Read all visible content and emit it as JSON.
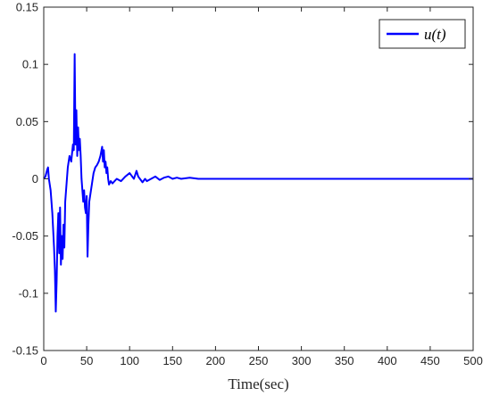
{
  "chart_data": {
    "type": "line",
    "title": "",
    "xlabel": "Time(sec)",
    "ylabel": "",
    "xlim": [
      0,
      500
    ],
    "ylim": [
      -0.15,
      0.15
    ],
    "x_ticks": [
      "0",
      "50",
      "100",
      "150",
      "200",
      "250",
      "300",
      "350",
      "400",
      "450",
      "500"
    ],
    "y_ticks": [
      "-0.15",
      "-0.1",
      "-0.05",
      "0",
      "0.05",
      "0.1",
      "0.15"
    ],
    "grid": false,
    "legend_position": "top-right",
    "series": [
      {
        "name": "u(t)",
        "color": "#0000ff",
        "x": [
          0,
          2,
          4,
          5,
          6,
          8,
          10,
          12,
          13,
          14,
          15,
          16,
          17,
          18,
          19,
          20,
          21,
          22,
          23,
          24,
          25,
          26,
          28,
          30,
          32,
          34,
          35,
          36,
          37,
          38,
          39,
          40,
          41,
          42,
          43,
          44,
          45,
          46,
          47,
          48,
          49,
          50,
          51,
          52,
          53,
          54,
          55,
          56,
          57,
          58,
          60,
          62,
          64,
          66,
          68,
          69,
          70,
          71,
          72,
          73,
          74,
          75,
          76,
          78,
          80,
          85,
          90,
          95,
          100,
          105,
          108,
          110,
          112,
          115,
          118,
          120,
          125,
          130,
          135,
          140,
          145,
          150,
          155,
          160,
          170,
          180,
          200,
          250,
          300,
          350,
          400,
          450,
          500
        ],
        "y": [
          0,
          0.002,
          0.008,
          0.01,
          0.0,
          -0.01,
          -0.03,
          -0.06,
          -0.08,
          -0.116,
          -0.09,
          -0.05,
          -0.03,
          -0.065,
          -0.025,
          -0.075,
          -0.05,
          -0.07,
          -0.04,
          -0.06,
          -0.02,
          -0.01,
          0.01,
          0.02,
          0.015,
          0.03,
          0.025,
          0.109,
          0.03,
          0.06,
          0.02,
          0.045,
          0.025,
          0.035,
          0.02,
          0.0,
          -0.01,
          -0.02,
          -0.01,
          -0.025,
          -0.03,
          -0.015,
          -0.068,
          -0.04,
          -0.02,
          -0.015,
          -0.01,
          -0.005,
          0.0,
          0.005,
          0.01,
          0.012,
          0.015,
          0.02,
          0.028,
          0.015,
          0.025,
          0.01,
          0.015,
          0.005,
          0.01,
          0.0,
          -0.005,
          -0.002,
          -0.004,
          0.0,
          -0.002,
          0.002,
          0.005,
          0.0,
          0.007,
          0.002,
          0.0,
          -0.003,
          0.0,
          -0.002,
          0.0,
          0.002,
          -0.001,
          0.001,
          0.002,
          0.0,
          0.001,
          0.0,
          0.001,
          0.0,
          0.0,
          0.0,
          0.0,
          0.0,
          0.0,
          0.0,
          0.0
        ]
      }
    ]
  }
}
